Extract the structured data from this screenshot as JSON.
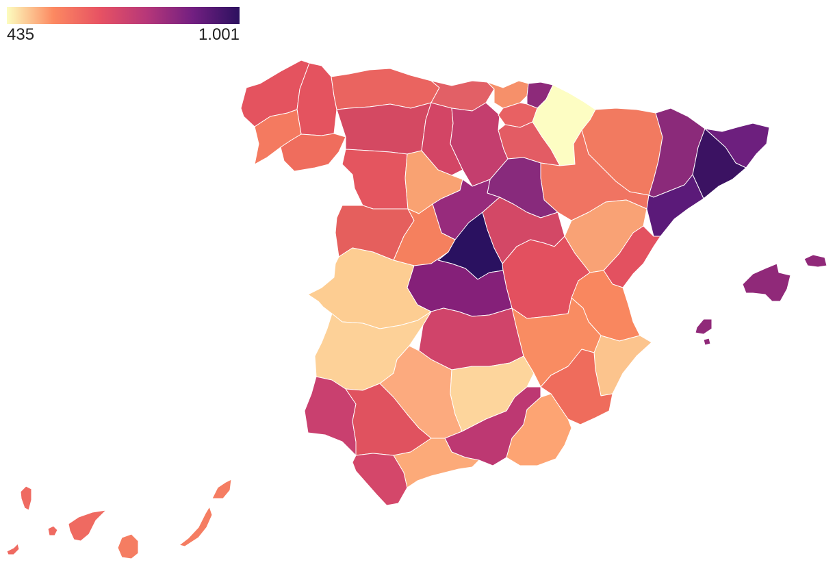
{
  "legend": {
    "min_label": "435",
    "max_label": "1.001",
    "min_value": 435,
    "max_value": 1001,
    "colors": [
      "#fcfdbf",
      "#fc8961",
      "#e75263",
      "#b73779",
      "#721f81",
      "#2c115f"
    ]
  },
  "regions": [
    {
      "id": "a-coruna",
      "color": "#e4535f"
    },
    {
      "id": "lugo",
      "color": "#e4535f"
    },
    {
      "id": "asturias",
      "color": "#ea6460"
    },
    {
      "id": "cantabria",
      "color": "#e26066"
    },
    {
      "id": "pontevedra",
      "color": "#f47a60"
    },
    {
      "id": "ourense",
      "color": "#ef6d5d"
    },
    {
      "id": "leon",
      "color": "#d44962"
    },
    {
      "id": "palencia",
      "color": "#d34565"
    },
    {
      "id": "burgos",
      "color": "#c43e6e"
    },
    {
      "id": "bizkaia",
      "color": "#f6906a"
    },
    {
      "id": "gipuzkoa",
      "color": "#8d2a7a"
    },
    {
      "id": "araba",
      "color": "#e86163"
    },
    {
      "id": "navarra",
      "color": "#fdfdc3"
    },
    {
      "id": "la-rioja",
      "color": "#e35c64"
    },
    {
      "id": "huesca",
      "color": "#f27a60"
    },
    {
      "id": "lleida",
      "color": "#8b2a7a"
    },
    {
      "id": "girona",
      "color": "#6d1f7e"
    },
    {
      "id": "barcelona",
      "color": "#3b1262"
    },
    {
      "id": "tarragona",
      "color": "#5b1a79"
    },
    {
      "id": "zaragoza",
      "color": "#f07462"
    },
    {
      "id": "soria",
      "color": "#882a7c"
    },
    {
      "id": "zamora",
      "color": "#e4555f"
    },
    {
      "id": "valladolid",
      "color": "#f9a272"
    },
    {
      "id": "segovia",
      "color": "#972b7c"
    },
    {
      "id": "salamanca",
      "color": "#e55f5d"
    },
    {
      "id": "avila",
      "color": "#f5805e"
    },
    {
      "id": "guadalajara",
      "color": "#d34866"
    },
    {
      "id": "teruel",
      "color": "#f9a275"
    },
    {
      "id": "castellon",
      "color": "#e35160"
    },
    {
      "id": "madrid",
      "color": "#2a1160"
    },
    {
      "id": "caceres",
      "color": "#fdcd92"
    },
    {
      "id": "toledo",
      "color": "#852079"
    },
    {
      "id": "cuenca",
      "color": "#e3505f"
    },
    {
      "id": "valencia",
      "color": "#f9875f"
    },
    {
      "id": "badajoz",
      "color": "#fdd198"
    },
    {
      "id": "ciudad-real",
      "color": "#d0446a"
    },
    {
      "id": "albacete",
      "color": "#f98c62"
    },
    {
      "id": "alicante",
      "color": "#fcc48d"
    },
    {
      "id": "huelva",
      "color": "#c9406f"
    },
    {
      "id": "sevilla",
      "color": "#e0525f"
    },
    {
      "id": "cordoba",
      "color": "#fcaa7e"
    },
    {
      "id": "jaen",
      "color": "#fdd59c"
    },
    {
      "id": "murcia",
      "color": "#ef6c5c"
    },
    {
      "id": "granada",
      "color": "#bd3872"
    },
    {
      "id": "almeria",
      "color": "#fda473"
    },
    {
      "id": "cadiz",
      "color": "#d4476a"
    },
    {
      "id": "malaga",
      "color": "#fcaa79"
    },
    {
      "id": "mallorca",
      "color": "#902979"
    },
    {
      "id": "menorca",
      "color": "#902979"
    },
    {
      "id": "ibiza",
      "color": "#902979"
    },
    {
      "id": "formentera",
      "color": "#902979"
    },
    {
      "id": "la-palma",
      "color": "#ef6a61"
    },
    {
      "id": "el-hierro",
      "color": "#ef6a61"
    },
    {
      "id": "la-gomera",
      "color": "#ef6a61"
    },
    {
      "id": "tenerife",
      "color": "#ef6a61"
    },
    {
      "id": "gran-canaria",
      "color": "#f57d62"
    },
    {
      "id": "fuerteventura",
      "color": "#f57d62"
    },
    {
      "id": "lanzarote",
      "color": "#f57d62"
    }
  ]
}
